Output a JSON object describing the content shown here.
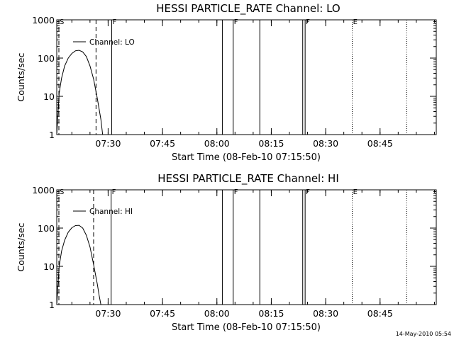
{
  "footer_timestamp": "14-May-2010 05:54",
  "chart_data": [
    {
      "type": "line",
      "title": "HESSI PARTICLE_RATE Channel: LO",
      "xlabel": "Start Time (08-Feb-10 07:15:50)",
      "ylabel": "Counts/sec",
      "y_scale": "log",
      "xlim": [
        "07:15:50",
        "09:00:30"
      ],
      "ylim": [
        1,
        1000
      ],
      "x_tick_labels": [
        "07:30",
        "07:45",
        "08:00",
        "08:15",
        "08:30",
        "08:45"
      ],
      "y_tick_labels": [
        "1",
        "10",
        "100",
        "1000"
      ],
      "legend": {
        "placement": "top-left",
        "entries": [
          "Channel: LO"
        ]
      },
      "series": [
        {
          "name": "Channel: LO",
          "x": [
            "07:15:50",
            "07:16:30",
            "07:17:10",
            "07:18:00",
            "07:19:00",
            "07:20:00",
            "07:21:00",
            "07:22:00",
            "07:23:00",
            "07:24:00",
            "07:25:00",
            "07:26:00",
            "07:27:00",
            "07:28:00",
            "07:28:30"
          ],
          "y": [
            1,
            12,
            30,
            62,
            100,
            132,
            155,
            160,
            145,
            110,
            62,
            28,
            9,
            2.5,
            1
          ]
        }
      ],
      "markers": [
        {
          "label": "S",
          "time": "07:15:50",
          "style": "dashed"
        },
        {
          "label": "",
          "time": "07:26:40",
          "style": "dashed"
        },
        {
          "label": "F",
          "time": "07:31:00",
          "style": "solid"
        },
        {
          "label": "",
          "time": "08:01:30",
          "style": "solid"
        },
        {
          "label": "F",
          "time": "08:04:30",
          "style": "solid"
        },
        {
          "label": "",
          "time": "08:11:50",
          "style": "solid"
        },
        {
          "label": "",
          "time": "08:23:40",
          "style": "solid"
        },
        {
          "label": "F",
          "time": "08:24:20",
          "style": "solid"
        },
        {
          "label": "E",
          "time": "08:37:20",
          "style": "dotted"
        },
        {
          "label": "",
          "time": "08:52:20",
          "style": "dotted"
        }
      ]
    },
    {
      "type": "line",
      "title": "HESSI PARTICLE_RATE Channel: HI",
      "xlabel": "Start Time (08-Feb-10 07:15:50)",
      "ylabel": "Counts/sec",
      "y_scale": "log",
      "xlim": [
        "07:15:50",
        "09:00:30"
      ],
      "ylim": [
        1,
        1000
      ],
      "x_tick_labels": [
        "07:30",
        "07:45",
        "08:00",
        "08:15",
        "08:30",
        "08:45"
      ],
      "y_tick_labels": [
        "1",
        "10",
        "100",
        "1000"
      ],
      "legend": {
        "placement": "top-left",
        "entries": [
          "Channel: HI"
        ]
      },
      "series": [
        {
          "name": "Channel: HI",
          "x": [
            "07:15:50",
            "07:16:30",
            "07:17:10",
            "07:18:00",
            "07:19:00",
            "07:20:00",
            "07:21:00",
            "07:22:00",
            "07:23:00",
            "07:24:00",
            "07:25:00",
            "07:26:00",
            "07:27:00",
            "07:27:30",
            "07:28:00"
          ],
          "y": [
            1,
            10,
            25,
            48,
            78,
            102,
            116,
            118,
            100,
            65,
            32,
            11,
            3.5,
            1.8,
            1
          ]
        }
      ],
      "markers": [
        {
          "label": "S",
          "time": "07:15:50",
          "style": "dashed"
        },
        {
          "label": "",
          "time": "07:26:00",
          "style": "dashed"
        },
        {
          "label": "F",
          "time": "07:30:50",
          "style": "solid"
        },
        {
          "label": "",
          "time": "08:01:30",
          "style": "solid"
        },
        {
          "label": "F",
          "time": "08:04:30",
          "style": "solid"
        },
        {
          "label": "",
          "time": "08:11:50",
          "style": "solid"
        },
        {
          "label": "",
          "time": "08:23:40",
          "style": "solid"
        },
        {
          "label": "F",
          "time": "08:24:20",
          "style": "solid"
        },
        {
          "label": "E",
          "time": "08:37:20",
          "style": "dotted"
        },
        {
          "label": "",
          "time": "08:52:20",
          "style": "dotted"
        }
      ]
    }
  ]
}
